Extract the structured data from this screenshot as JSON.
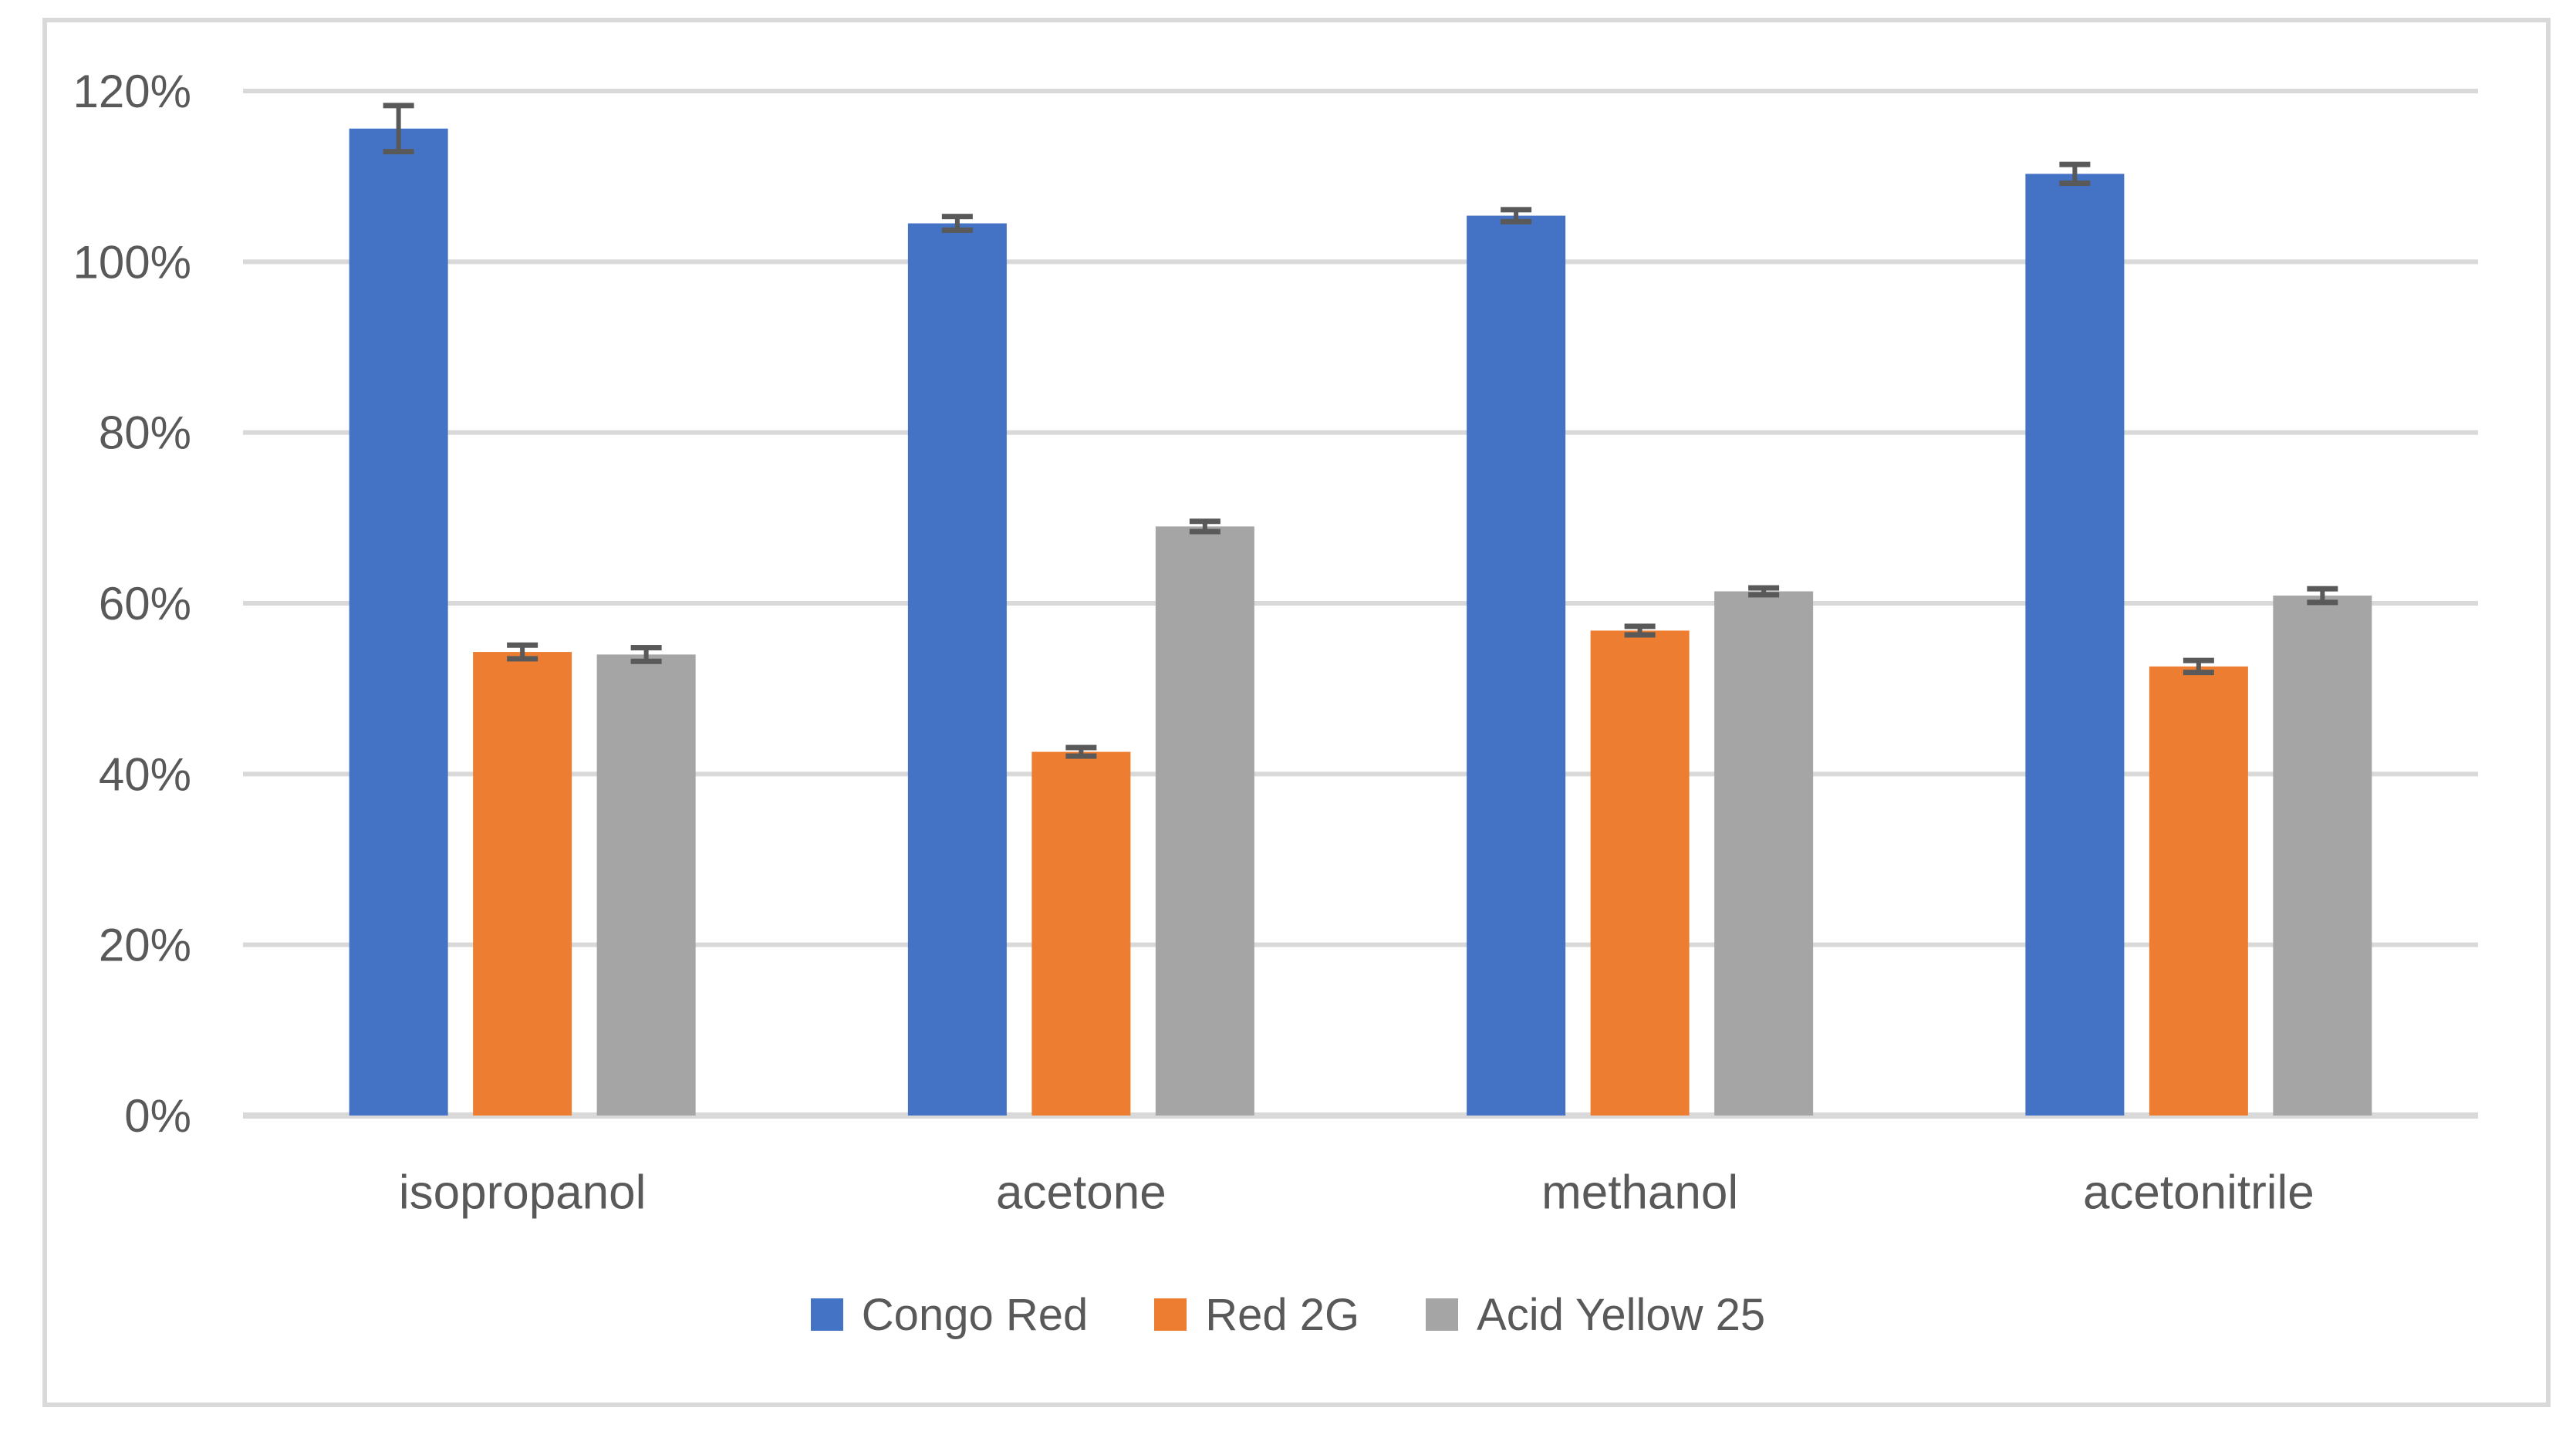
{
  "chart": {
    "background": "#ffffff",
    "border_color": "#d9d9d9",
    "gridline_color": "#d9d9d9",
    "axis_line_color": "#d9d9d9",
    "text_color": "#595959",
    "error_bar_color": "#595959"
  },
  "chart_data": {
    "type": "bar",
    "title": "",
    "categories": [
      "isopropanol",
      "acetone",
      "methanol",
      "acetonitrile"
    ],
    "series": [
      {
        "name": "Congo Red",
        "color": "#4472c4",
        "values": [
          115.6,
          104.5,
          105.4,
          110.3
        ],
        "errors": [
          2.7,
          0.8,
          0.7,
          1.1
        ]
      },
      {
        "name": "Red 2G",
        "color": "#ed7d31",
        "values": [
          54.3,
          42.6,
          56.8,
          52.6
        ],
        "errors": [
          0.8,
          0.5,
          0.5,
          0.7
        ]
      },
      {
        "name": "Acid Yellow 25",
        "color": "#a5a5a5",
        "values": [
          54.0,
          69.0,
          61.4,
          60.9
        ],
        "errors": [
          0.8,
          0.6,
          0.4,
          0.8
        ]
      }
    ],
    "y_axis": {
      "unit": "%",
      "min": 0,
      "max": 120,
      "step": 20,
      "ticks": [
        "0%",
        "20%",
        "40%",
        "60%",
        "80%",
        "100%",
        "120%"
      ]
    },
    "legend": [
      "Congo Red",
      "Red 2G",
      "Acid Yellow 25"
    ],
    "legend_position": "bottom",
    "grid": true,
    "error_bars": true,
    "xlabel": "",
    "ylabel": ""
  }
}
